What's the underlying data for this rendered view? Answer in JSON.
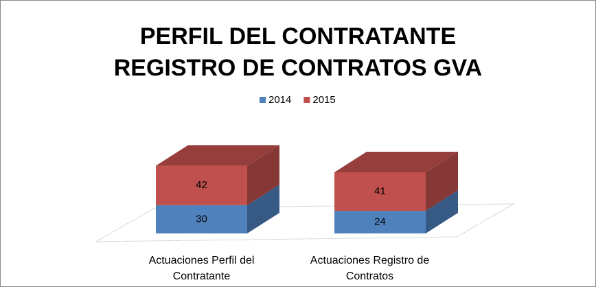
{
  "chart_data": {
    "type": "bar3d_stacked",
    "title": "PERFIL DEL CONTRATANTE\nREGISTRO DE CONTRATOS GVA",
    "categories": [
      "Actuaciones Perfil del Contratante",
      "Actuaciones Registro de Contratos"
    ],
    "series": [
      {
        "name": "2014",
        "color": "#4f81bd",
        "values": [
          30,
          24
        ]
      },
      {
        "name": "2015",
        "color": "#c0504d",
        "values": [
          42,
          41
        ]
      }
    ],
    "legend": "top"
  }
}
